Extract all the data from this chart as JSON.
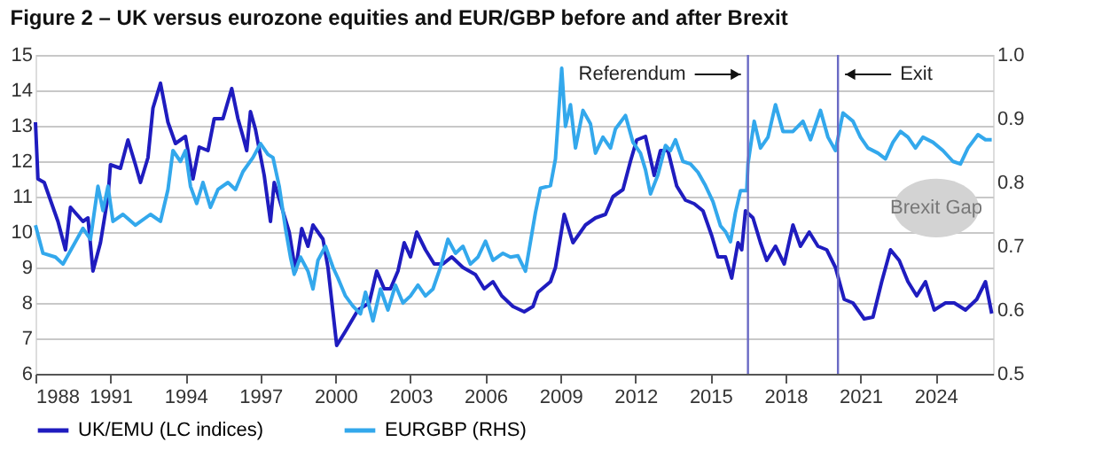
{
  "chart_data": {
    "type": "line",
    "title": "Figure 2 – UK versus eurozone equities and EUR/GBP before and after Brexit",
    "xlim": [
      1988,
      2026.3
    ],
    "xticks": [
      1988,
      1991,
      1994,
      1997,
      2000,
      2003,
      2006,
      2009,
      2012,
      2015,
      2018,
      2021,
      2024
    ],
    "ylim": [
      6,
      15
    ],
    "yticks": [
      6,
      7,
      8,
      9,
      10,
      11,
      12,
      13,
      14,
      15
    ],
    "y2lim": [
      0.5,
      1.0
    ],
    "y2ticks": [
      0.5,
      0.6,
      0.7,
      0.8,
      0.9,
      {
        "value": 1.0,
        "label": "1.0"
      }
    ],
    "grid": "y",
    "legend": "bottom",
    "line_style": "solid",
    "marker": "none",
    "series": [
      {
        "name": "UK/EMU (LC indices)",
        "color": "#1f1cbf",
        "x": [
          1988.0,
          1988.1,
          1988.35,
          1988.9,
          1989.2,
          1989.4,
          1989.9,
          1990.1,
          1990.3,
          1990.6,
          1990.9,
          1991.0,
          1991.4,
          1991.7,
          1992.0,
          1992.2,
          1992.5,
          1992.7,
          1993.0,
          1993.3,
          1993.6,
          1994.0,
          1994.3,
          1994.55,
          1994.9,
          1995.15,
          1995.5,
          1995.85,
          1996.1,
          1996.3,
          1996.45,
          1996.6,
          1996.8,
          1997.15,
          1997.4,
          1997.55,
          1997.85,
          1998.15,
          1998.4,
          1998.65,
          1998.9,
          1999.1,
          1999.5,
          1999.7,
          2000.05,
          2000.4,
          2000.9,
          2001.35,
          2001.65,
          2001.95,
          2002.2,
          2002.5,
          2002.75,
          2003.0,
          2003.25,
          2003.6,
          2003.95,
          2004.3,
          2004.65,
          2005.1,
          2005.6,
          2005.95,
          2006.3,
          2006.65,
          2007.1,
          2007.55,
          2007.9,
          2008.1,
          2008.6,
          2008.8,
          2009.15,
          2009.5,
          2010.0,
          2010.4,
          2010.8,
          2011.1,
          2011.5,
          2011.8,
          2012.05,
          2012.4,
          2012.75,
          2013.0,
          2013.3,
          2013.65,
          2014.0,
          2014.35,
          2014.7,
          2015.05,
          2015.3,
          2015.6,
          2015.85,
          2016.1,
          2016.25,
          2016.4,
          2016.7,
          2017.0,
          2017.25,
          2017.6,
          2017.95,
          2018.3,
          2018.6,
          2018.95,
          2019.3,
          2019.65,
          2020.0,
          2020.35,
          2020.7,
          2021.15,
          2021.5,
          2021.85,
          2022.2,
          2022.55,
          2022.9,
          2023.25,
          2023.6,
          2023.95,
          2024.4,
          2024.75,
          2025.2,
          2025.65,
          2026.0,
          2026.25
        ],
        "values": [
          13.1,
          11.5,
          11.4,
          10.3,
          9.5,
          10.7,
          10.3,
          10.4,
          8.9,
          9.7,
          11.0,
          11.9,
          11.8,
          12.6,
          11.9,
          11.4,
          12.1,
          13.5,
          14.2,
          13.1,
          12.5,
          12.7,
          11.5,
          12.4,
          12.3,
          13.2,
          13.2,
          14.05,
          13.2,
          12.7,
          12.3,
          13.4,
          12.9,
          11.6,
          10.3,
          11.4,
          10.7,
          10.0,
          8.9,
          10.1,
          9.6,
          10.2,
          9.8,
          9.0,
          6.8,
          7.2,
          7.8,
          8.0,
          8.9,
          8.4,
          8.4,
          8.9,
          9.7,
          9.3,
          10.0,
          9.5,
          9.1,
          9.1,
          9.3,
          9.0,
          8.8,
          8.4,
          8.6,
          8.2,
          7.9,
          7.75,
          7.9,
          8.3,
          8.6,
          9.0,
          10.5,
          9.7,
          10.2,
          10.4,
          10.5,
          11.0,
          11.2,
          12.0,
          12.6,
          12.7,
          11.6,
          12.3,
          12.3,
          11.3,
          10.9,
          10.8,
          10.6,
          9.9,
          9.3,
          9.3,
          8.7,
          9.7,
          9.5,
          10.6,
          10.4,
          9.7,
          9.2,
          9.6,
          9.1,
          10.2,
          9.6,
          10.0,
          9.6,
          9.5,
          9.0,
          8.1,
          8.0,
          7.55,
          7.6,
          8.6,
          9.5,
          9.2,
          8.6,
          8.2,
          8.6,
          7.8,
          8.0,
          8.0,
          7.8,
          8.1,
          8.6,
          7.7
        ]
      },
      {
        "name": "EURGBP (RHS)",
        "color": "#33a8ec",
        "axis": "y2",
        "x": [
          1988.0,
          1988.3,
          1988.8,
          1989.1,
          1989.5,
          1989.9,
          1990.2,
          1990.5,
          1990.7,
          1990.9,
          1991.1,
          1991.5,
          1992.0,
          1992.6,
          1993.0,
          1993.3,
          1993.5,
          1993.8,
          1994.0,
          1994.2,
          1994.45,
          1994.7,
          1995.0,
          1995.3,
          1995.7,
          1996.0,
          1996.3,
          1996.7,
          1997.0,
          1997.3,
          1997.5,
          1997.75,
          1998.0,
          1998.2,
          1998.35,
          1998.6,
          1998.9,
          1999.1,
          1999.3,
          1999.6,
          1999.9,
          2000.1,
          2000.4,
          2000.7,
          2001.0,
          2001.2,
          2001.5,
          2001.8,
          2002.1,
          2002.4,
          2002.7,
          2003.0,
          2003.3,
          2003.6,
          2003.9,
          2004.2,
          2004.5,
          2004.8,
          2005.1,
          2005.4,
          2005.7,
          2006.0,
          2006.3,
          2006.7,
          2007.0,
          2007.3,
          2007.6,
          2008.0,
          2008.2,
          2008.6,
          2008.8,
          2009.05,
          2009.2,
          2009.4,
          2009.6,
          2009.9,
          2010.2,
          2010.4,
          2010.7,
          2011.0,
          2011.2,
          2011.6,
          2011.9,
          2012.2,
          2012.4,
          2012.6,
          2012.9,
          2013.2,
          2013.4,
          2013.6,
          2013.9,
          2014.2,
          2014.5,
          2014.8,
          2015.1,
          2015.4,
          2015.6,
          2015.8,
          2016.0,
          2016.2,
          2016.45,
          2016.5,
          2016.75,
          2017.0,
          2017.3,
          2017.6,
          2017.9,
          2018.3,
          2018.7,
          2019.0,
          2019.4,
          2019.7,
          2020.0,
          2020.3,
          2020.7,
          2021.0,
          2021.3,
          2021.7,
          2022.0,
          2022.3,
          2022.6,
          2022.9,
          2023.2,
          2023.5,
          2023.9,
          2024.3,
          2024.7,
          2025.0,
          2025.3,
          2025.7,
          2026.0,
          2026.25
        ],
        "values": [
          0.733,
          0.689,
          0.683,
          0.672,
          0.7,
          0.728,
          0.711,
          0.794,
          0.756,
          0.794,
          0.739,
          0.75,
          0.733,
          0.75,
          0.739,
          0.789,
          0.85,
          0.833,
          0.85,
          0.794,
          0.767,
          0.8,
          0.761,
          0.789,
          0.8,
          0.789,
          0.817,
          0.839,
          0.861,
          0.844,
          0.839,
          0.794,
          0.728,
          0.683,
          0.656,
          0.683,
          0.661,
          0.633,
          0.678,
          0.7,
          0.667,
          0.65,
          0.622,
          0.606,
          0.594,
          0.628,
          0.583,
          0.633,
          0.6,
          0.639,
          0.611,
          0.622,
          0.639,
          0.622,
          0.633,
          0.667,
          0.711,
          0.689,
          0.7,
          0.672,
          0.683,
          0.708,
          0.678,
          0.689,
          0.683,
          0.685,
          0.661,
          0.753,
          0.791,
          0.795,
          0.837,
          0.979,
          0.888,
          0.922,
          0.854,
          0.913,
          0.892,
          0.846,
          0.871,
          0.854,
          0.884,
          0.905,
          0.863,
          0.846,
          0.82,
          0.782,
          0.812,
          0.858,
          0.85,
          0.867,
          0.833,
          0.829,
          0.816,
          0.795,
          0.77,
          0.732,
          0.723,
          0.707,
          0.753,
          0.787,
          0.787,
          0.829,
          0.896,
          0.854,
          0.871,
          0.922,
          0.88,
          0.88,
          0.896,
          0.867,
          0.913,
          0.871,
          0.85,
          0.909,
          0.896,
          0.871,
          0.854,
          0.846,
          0.837,
          0.863,
          0.88,
          0.871,
          0.854,
          0.871,
          0.863,
          0.85,
          0.833,
          0.829,
          0.854,
          0.875,
          0.867,
          0.867
        ]
      }
    ],
    "ref_lines": [
      {
        "axis": "x",
        "value": 2016.5,
        "label": "Referendum",
        "color": "#6a6ac4"
      },
      {
        "axis": "x",
        "value": 2020.1,
        "label": "Exit",
        "color": "#6a6ac4"
      }
    ],
    "annotations": [
      "Brexit Gap"
    ]
  }
}
